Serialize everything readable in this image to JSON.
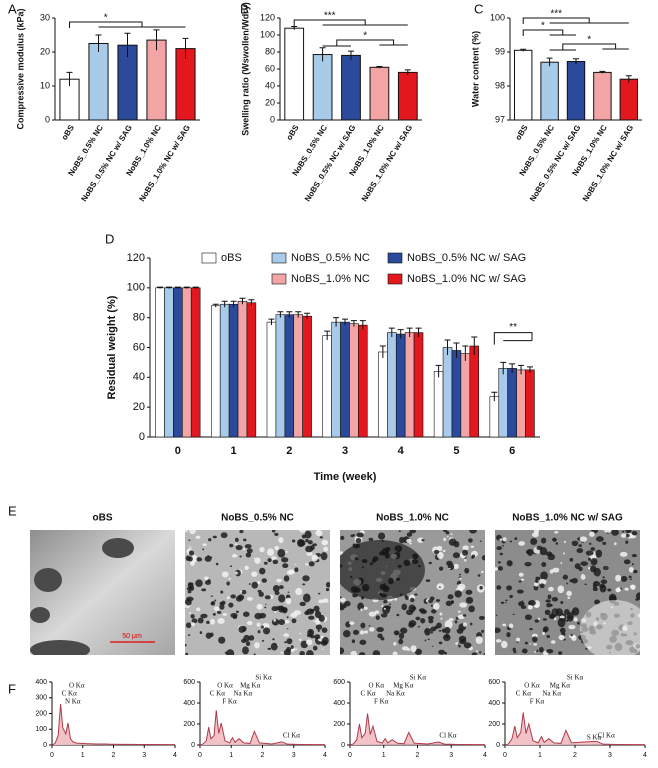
{
  "chart_data": [
    {
      "panel": "A",
      "type": "bar",
      "ylabel": "Compressive modulus (kPa)",
      "categories": [
        "oBS",
        "NoBS_0.5% NC",
        "NoBS_0.5% NC w/ SAG",
        "NoBS_1.0% NC",
        "NoBS_1.0% NC w/ SAG"
      ],
      "values": [
        12,
        22.5,
        22,
        23.5,
        21
      ],
      "errors": [
        2,
        2.5,
        3.5,
        3,
        3
      ],
      "colors": [
        "#ffffff",
        "#a9cbea",
        "#2b4a9c",
        "#f3a5a5",
        "#e3171e"
      ],
      "ylim": [
        0,
        30
      ],
      "yticks": [
        0,
        10,
        20,
        30
      ],
      "annotations": [
        "*"
      ]
    },
    {
      "panel": "B",
      "type": "bar",
      "ylabel": "Swelling ratio (Wswollen/Wdry)",
      "categories": [
        "oBS",
        "NoBS_0.5% NC",
        "NoBS_0.5% NC w/ SAG",
        "NoBS_1.0% NC",
        "NoBS_1.0% NC w/ SAG"
      ],
      "values": [
        108,
        77,
        76,
        62,
        56
      ],
      "errors": [
        2,
        8,
        5,
        1,
        3
      ],
      "colors": [
        "#ffffff",
        "#a9cbea",
        "#2b4a9c",
        "#f3a5a5",
        "#e3171e"
      ],
      "ylim": [
        0,
        120
      ],
      "yticks": [
        0,
        20,
        40,
        60,
        80,
        100,
        120
      ],
      "annotations": [
        "***",
        "*"
      ]
    },
    {
      "panel": "C",
      "type": "bar",
      "ylabel": "Water content (%)",
      "categories": [
        "oBS",
        "NoBS_0.5% NC",
        "NoBS_0.5% NC w/ SAG",
        "NoBS_1.0% NC",
        "NoBS_1.0% NC w/ SAG"
      ],
      "values": [
        99.05,
        98.7,
        98.72,
        98.4,
        98.2
      ],
      "errors": [
        0.03,
        0.12,
        0.08,
        0.03,
        0.1
      ],
      "colors": [
        "#ffffff",
        "#a9cbea",
        "#2b4a9c",
        "#f3a5a5",
        "#e3171e"
      ],
      "ylim": [
        97,
        100
      ],
      "yticks": [
        97,
        98,
        99,
        100
      ],
      "annotations": [
        "***",
        "*",
        "*"
      ]
    },
    {
      "panel": "D",
      "type": "grouped_bar",
      "ylabel": "Residual weight (%)",
      "xlabel": "Time (week)",
      "categories": [
        0,
        1,
        2,
        3,
        4,
        5,
        6
      ],
      "series": [
        {
          "name": "oBS",
          "color": "#ffffff",
          "values": [
            100,
            88,
            77,
            68,
            57,
            44,
            27
          ],
          "errors": [
            0.5,
            1,
            2,
            3,
            4,
            4,
            3
          ]
        },
        {
          "name": "NoBS_0.5% NC",
          "color": "#a9cbea",
          "values": [
            100,
            89,
            82,
            77,
            70,
            60,
            46
          ],
          "errors": [
            0.5,
            2,
            2,
            3,
            3,
            5,
            4
          ]
        },
        {
          "name": "NoBS_0.5% NC w/ SAG",
          "color": "#2b4a9c",
          "values": [
            100,
            89,
            82,
            77,
            69,
            58,
            46
          ],
          "errors": [
            0.5,
            2,
            2,
            2,
            3,
            5,
            3
          ]
        },
        {
          "name": "NoBS_1.0% NC",
          "color": "#f3a5a5",
          "values": [
            100,
            91,
            82,
            76,
            70,
            56,
            45
          ],
          "errors": [
            0.5,
            2,
            2,
            2,
            3,
            5,
            3
          ]
        },
        {
          "name": "NoBS_1.0% NC w/ SAG",
          "color": "#e3171e",
          "values": [
            100,
            90,
            81,
            75,
            70,
            61,
            45
          ],
          "errors": [
            0.5,
            2,
            2,
            3,
            3,
            6,
            2
          ]
        }
      ],
      "ylim": [
        0,
        120
      ],
      "yticks": [
        0,
        20,
        40,
        60,
        80,
        100,
        120
      ],
      "annotations": [
        "**"
      ]
    },
    {
      "panel": "F",
      "type": "area",
      "color": "#b03a48",
      "x": [
        0,
        0.1,
        0.2,
        0.28,
        0.35,
        0.45,
        0.52,
        0.6,
        0.68,
        0.8,
        0.95,
        1.04,
        1.12,
        1.25,
        1.4,
        1.6,
        1.74,
        1.9,
        2.3,
        2.62,
        2.8,
        3.2,
        4
      ],
      "values": [
        0,
        10,
        60,
        260,
        110,
        70,
        140,
        40,
        20,
        12,
        10,
        10,
        8,
        8,
        6,
        6,
        6,
        5,
        4,
        4,
        3,
        3,
        2
      ],
      "xlim": [
        0,
        4
      ],
      "xticks": [
        0,
        1,
        2,
        3,
        4
      ],
      "ylim": [
        0,
        400
      ],
      "yticks": [
        0,
        100,
        200,
        300,
        400
      ],
      "annotations": [
        {
          "text": "C Kα",
          "x": 0.28
        },
        {
          "text": "O Kα",
          "x": 0.52
        },
        {
          "text": "N Kα",
          "x": 0.39
        }
      ]
    },
    {
      "type": "area",
      "color": "#b03a48",
      "x": [
        0,
        0.1,
        0.2,
        0.28,
        0.35,
        0.45,
        0.52,
        0.6,
        0.68,
        0.8,
        0.95,
        1.04,
        1.12,
        1.25,
        1.4,
        1.6,
        1.74,
        1.9,
        2.3,
        2.62,
        2.8,
        3.2,
        4
      ],
      "values": [
        0,
        10,
        40,
        170,
        60,
        90,
        330,
        110,
        210,
        40,
        20,
        70,
        25,
        60,
        20,
        15,
        130,
        20,
        10,
        30,
        8,
        5,
        3
      ],
      "xlim": [
        0,
        4
      ],
      "xticks": [
        0,
        1,
        2,
        3,
        4
      ],
      "ylim": [
        0,
        600
      ],
      "yticks": [
        0,
        200,
        400,
        600
      ],
      "annotations": [
        {
          "text": "O Kα",
          "x": 0.52
        },
        {
          "text": "Mg Kα",
          "x": 1.25
        },
        {
          "text": "C Kα",
          "x": 0.28
        },
        {
          "text": "Na Kα",
          "x": 1.04
        },
        {
          "text": "F Kα",
          "x": 0.68
        },
        {
          "text": "Si Kα",
          "x": 1.74
        },
        {
          "text": "Cl Kα",
          "x": 2.62
        }
      ]
    },
    {
      "type": "area",
      "color": "#b03a48",
      "x": [
        0,
        0.1,
        0.2,
        0.28,
        0.35,
        0.45,
        0.52,
        0.6,
        0.68,
        0.8,
        0.95,
        1.04,
        1.12,
        1.25,
        1.4,
        1.6,
        1.74,
        1.9,
        2.3,
        2.62,
        2.8,
        3.2,
        4
      ],
      "values": [
        0,
        10,
        50,
        200,
        70,
        110,
        300,
        100,
        180,
        35,
        18,
        60,
        20,
        50,
        18,
        12,
        120,
        18,
        10,
        28,
        8,
        5,
        3
      ],
      "xlim": [
        0,
        4
      ],
      "xticks": [
        0,
        1,
        2,
        3,
        4
      ],
      "ylim": [
        0,
        600
      ],
      "yticks": [
        0,
        200,
        400,
        600
      ],
      "annotations": [
        {
          "text": "O Kα",
          "x": 0.52
        },
        {
          "text": "Mg Kα",
          "x": 1.25
        },
        {
          "text": "C Kα",
          "x": 0.28
        },
        {
          "text": "Na Kα",
          "x": 1.04
        },
        {
          "text": "F Kα",
          "x": 0.68
        },
        {
          "text": "Si Kα",
          "x": 1.74
        },
        {
          "text": "Cl Kα",
          "x": 2.62
        }
      ]
    },
    {
      "type": "area",
      "color": "#b03a48",
      "x": [
        0,
        0.1,
        0.2,
        0.28,
        0.35,
        0.45,
        0.52,
        0.6,
        0.68,
        0.8,
        0.95,
        1.04,
        1.12,
        1.25,
        1.4,
        1.6,
        1.74,
        1.9,
        2.3,
        2.62,
        2.8,
        3.2,
        4
      ],
      "values": [
        0,
        10,
        60,
        180,
        70,
        120,
        310,
        110,
        200,
        40,
        20,
        80,
        25,
        60,
        20,
        15,
        140,
        20,
        30,
        35,
        8,
        5,
        3
      ],
      "xlim": [
        0,
        4
      ],
      "xticks": [
        0,
        1,
        2,
        3,
        4
      ],
      "ylim": [
        0,
        600
      ],
      "yticks": [
        0,
        200,
        400,
        600
      ],
      "annotations": [
        {
          "text": "O Kα",
          "x": 0.52
        },
        {
          "text": "Mg Kα",
          "x": 1.25
        },
        {
          "text": "C Kα",
          "x": 0.28
        },
        {
          "text": "Na Kα",
          "x": 1.04
        },
        {
          "text": "F Kα",
          "x": 0.68
        },
        {
          "text": "Si Kα",
          "x": 1.74
        },
        {
          "text": "Cl Kα",
          "x": 2.62
        },
        {
          "text": "S Kα",
          "x": 2.31
        }
      ]
    }
  ],
  "sem": {
    "panel": "E",
    "images": [
      {
        "title": "oBS",
        "scale_bar": "50 μm"
      },
      {
        "title": "NoBS_0.5% NC"
      },
      {
        "title": "NoBS_1.0% NC"
      },
      {
        "title": "NoBS_1.0% NC w/ SAG"
      }
    ]
  }
}
